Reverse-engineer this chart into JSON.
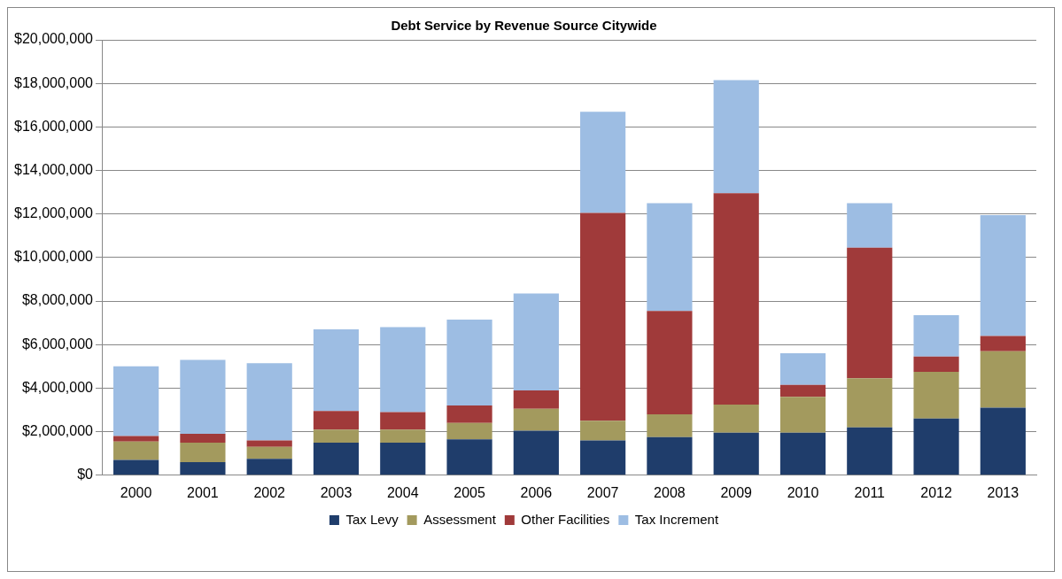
{
  "chart_data": {
    "type": "bar",
    "title": "Debt Service by Revenue Source Citywide",
    "categories": [
      "2000",
      "2001",
      "2002",
      "2003",
      "2004",
      "2005",
      "2006",
      "2007",
      "2008",
      "2009",
      "2010",
      "2011",
      "2012",
      "2013"
    ],
    "stacked": true,
    "series": [
      {
        "name": "Tax Levy",
        "color": "#1f3d6b",
        "values": [
          700000,
          600000,
          750000,
          1500000,
          1500000,
          1650000,
          2050000,
          1600000,
          1750000,
          1950000,
          1950000,
          2200000,
          2600000,
          3100000
        ]
      },
      {
        "name": "Assessment",
        "color": "#a39a5e",
        "values": [
          850000,
          900000,
          550000,
          600000,
          600000,
          750000,
          1000000,
          900000,
          1050000,
          1300000,
          1650000,
          2250000,
          2150000,
          2600000
        ]
      },
      {
        "name": "Other Facilities",
        "color": "#a03a3a",
        "values": [
          250000,
          400000,
          300000,
          850000,
          800000,
          800000,
          850000,
          9550000,
          4750000,
          9700000,
          550000,
          6000000,
          700000,
          700000
        ]
      },
      {
        "name": "Tax Increment",
        "color": "#9dbde3",
        "values": [
          3200000,
          3400000,
          3550000,
          3750000,
          3900000,
          3950000,
          4450000,
          4650000,
          4950000,
          5200000,
          1450000,
          2050000,
          1900000,
          5550000
        ]
      }
    ],
    "ylim": [
      0,
      20000000
    ],
    "yticks": [
      {
        "value": 0,
        "label": "$0"
      },
      {
        "value": 2000000,
        "label": "$2,000,000"
      },
      {
        "value": 4000000,
        "label": "$4,000,000"
      },
      {
        "value": 6000000,
        "label": "$6,000,000"
      },
      {
        "value": 8000000,
        "label": "$8,000,000"
      },
      {
        "value": 10000000,
        "label": "$10,000,000"
      },
      {
        "value": 12000000,
        "label": "$12,000,000"
      },
      {
        "value": 14000000,
        "label": "$14,000,000"
      },
      {
        "value": 16000000,
        "label": "$16,000,000"
      },
      {
        "value": 18000000,
        "label": "$18,000,000"
      },
      {
        "value": 20000000,
        "label": "$20,000,000"
      }
    ],
    "grid": "y",
    "legend": "bottom"
  }
}
